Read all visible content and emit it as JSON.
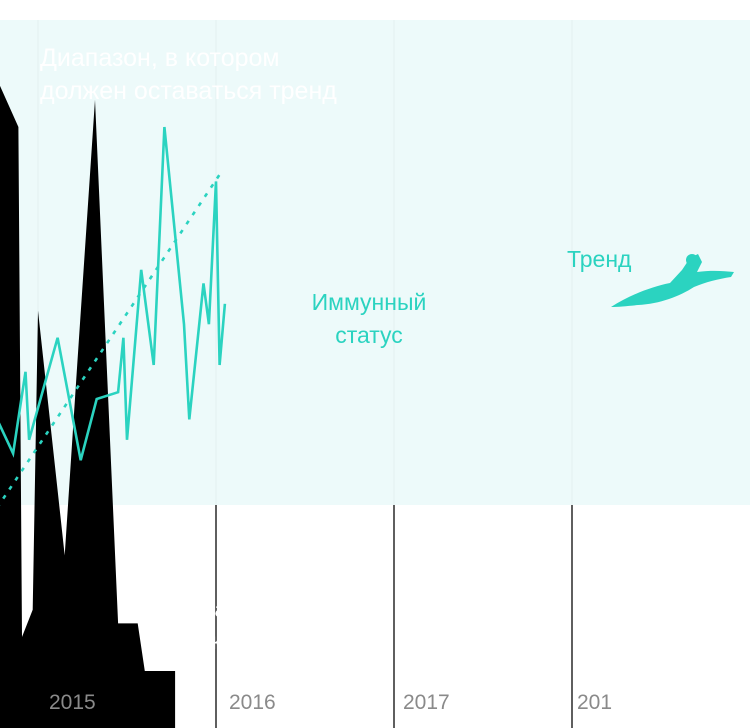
{
  "chart_data": {
    "type": "area",
    "title": "",
    "xlabel": "",
    "ylabel": "",
    "x_ticks": [
      "2015",
      "2016",
      "2017",
      "201"
    ],
    "band_label": [
      "Диапазон, в котором",
      "должен оставаться тренд"
    ],
    "series": [
      {
        "name": "Вирусная нагрузка",
        "label_lines": [
          "Вирусная",
          "нагрузка"
        ],
        "kind": "area",
        "color": "#000000",
        "points": [
          [
            2014.77,
            87
          ],
          [
            2014.89,
            80
          ],
          [
            2014.91,
            5
          ],
          [
            2014.97,
            9
          ],
          [
            2015.0,
            53
          ],
          [
            2015.15,
            17
          ],
          [
            2015.22,
            45
          ],
          [
            2015.32,
            84
          ],
          [
            2015.45,
            7
          ],
          [
            2015.56,
            7
          ],
          [
            2015.6,
            0
          ],
          [
            2015.77,
            0
          ]
        ]
      },
      {
        "name": "Иммунный статус",
        "label_lines": [
          "Иммунный",
          "статус"
        ],
        "kind": "line",
        "color": "#2bd3c0",
        "points": [
          [
            2014.77,
            37
          ],
          [
            2014.86,
            32
          ],
          [
            2014.93,
            44
          ],
          [
            2014.95,
            34
          ],
          [
            2015.11,
            49
          ],
          [
            2015.24,
            31
          ],
          [
            2015.33,
            40
          ],
          [
            2015.45,
            41
          ],
          [
            2015.48,
            49
          ],
          [
            2015.5,
            34
          ],
          [
            2015.58,
            59
          ],
          [
            2015.65,
            45
          ],
          [
            2015.71,
            80
          ],
          [
            2015.82,
            51
          ],
          [
            2015.85,
            37
          ],
          [
            2015.93,
            57
          ],
          [
            2015.96,
            51
          ],
          [
            2016.0,
            72
          ],
          [
            2016.02,
            45
          ],
          [
            2016.05,
            54
          ]
        ]
      },
      {
        "name": "Тренд",
        "label_lines": [
          "Тренд"
        ],
        "kind": "dashed-line",
        "color": "#2bd3c0",
        "points": [
          [
            2014.77,
            24
          ],
          [
            2016.02,
            73
          ]
        ]
      }
    ]
  }
}
